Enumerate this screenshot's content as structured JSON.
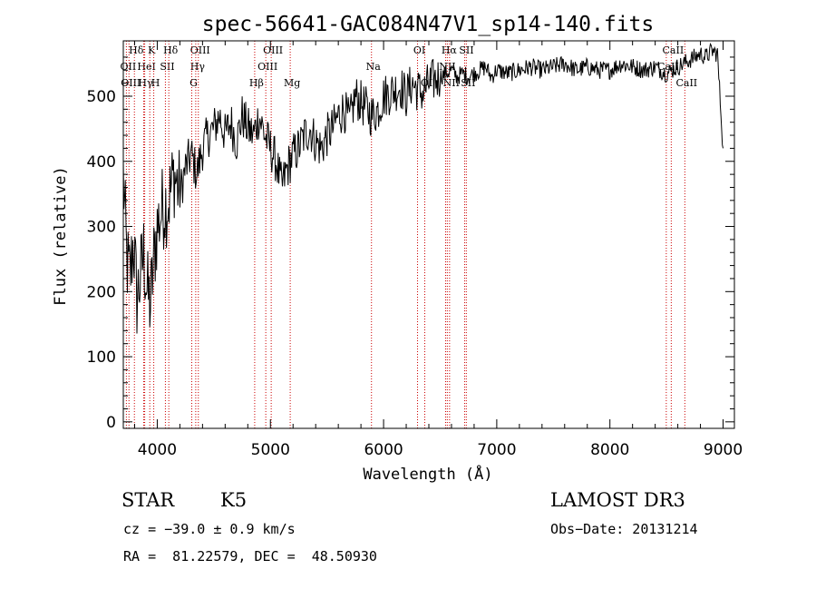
{
  "chart_data": {
    "type": "line",
    "title": "spec-56641-GAC084N47V1_sp14-140.fits",
    "xlabel": "Wavelength (Å)",
    "ylabel": "Flux (relative)",
    "xlim": [
      3700,
      9100
    ],
    "ylim": [
      -10,
      585
    ],
    "x_ticks": [
      4000,
      5000,
      6000,
      7000,
      8000,
      9000
    ],
    "y_ticks": [
      0,
      100,
      200,
      300,
      400,
      500
    ],
    "series": [
      {
        "name": "flux",
        "x": [
          3700,
          3730,
          3760,
          3790,
          3820,
          3850,
          3880,
          3910,
          3940,
          3970,
          4000,
          4050,
          4100,
          4150,
          4200,
          4250,
          4300,
          4350,
          4400,
          4450,
          4500,
          4550,
          4600,
          4650,
          4700,
          4750,
          4800,
          4850,
          4900,
          4950,
          5000,
          5050,
          5100,
          5150,
          5200,
          5250,
          5300,
          5350,
          5400,
          5450,
          5500,
          5550,
          5600,
          5650,
          5700,
          5750,
          5800,
          5850,
          5900,
          5950,
          6000,
          6050,
          6100,
          6150,
          6200,
          6250,
          6300,
          6350,
          6400,
          6450,
          6500,
          6550,
          6600,
          6650,
          6700,
          6750,
          6800,
          6850,
          6900,
          6950,
          7000,
          7100,
          7200,
          7300,
          7400,
          7500,
          7600,
          7700,
          7800,
          7900,
          8000,
          8100,
          8200,
          8300,
          8400,
          8500,
          8550,
          8600,
          8650,
          8700,
          8750,
          8800,
          8850,
          8900,
          8950,
          9000
        ],
        "y": [
          380,
          250,
          220,
          280,
          190,
          220,
          260,
          200,
          180,
          250,
          300,
          330,
          340,
          380,
          350,
          390,
          410,
          380,
          420,
          440,
          450,
          470,
          440,
          460,
          430,
          470,
          450,
          440,
          470,
          440,
          420,
          400,
          360,
          390,
          410,
          420,
          440,
          450,
          430,
          420,
          440,
          450,
          470,
          480,
          460,
          500,
          490,
          480,
          470,
          480,
          500,
          505,
          510,
          515,
          500,
          520,
          510,
          505,
          520,
          525,
          530,
          535,
          540,
          530,
          535,
          530,
          535,
          540,
          545,
          530,
          540,
          535,
          540,
          545,
          540,
          545,
          550,
          540,
          545,
          540,
          540,
          550,
          545,
          540,
          545,
          535,
          540,
          545,
          550,
          555,
          560,
          565,
          560,
          570,
          565,
          420
        ]
      }
    ],
    "spectral_lines": [
      {
        "name": "Hδ",
        "wavelength": 3798,
        "row": 0
      },
      {
        "name": "OII",
        "wavelength": 3727,
        "row": 1
      },
      {
        "name": "OIII",
        "wavelength": 3750,
        "row": 2
      },
      {
        "name": "HeI",
        "wavelength": 3889,
        "row": 1
      },
      {
        "name": "Hγ",
        "wavelength": 3880,
        "row": 2
      },
      {
        "name": "K",
        "wavelength": 3934,
        "row": 0
      },
      {
        "name": "SII",
        "wavelength": 4072,
        "row": 1
      },
      {
        "name": "H",
        "wavelength": 3969,
        "row": 2
      },
      {
        "name": "Hδ",
        "wavelength": 4102,
        "row": 0
      },
      {
        "name": "OIII",
        "wavelength": 4363,
        "row": 0
      },
      {
        "name": "Hγ",
        "wavelength": 4340,
        "row": 1
      },
      {
        "name": "G",
        "wavelength": 4305,
        "row": 2
      },
      {
        "name": "Hβ",
        "wavelength": 4861,
        "row": 2
      },
      {
        "name": "OIII",
        "wavelength": 5007,
        "row": 0
      },
      {
        "name": "OIII",
        "wavelength": 4959,
        "row": 1
      },
      {
        "name": "Mg",
        "wavelength": 5175,
        "row": 2
      },
      {
        "name": "Na",
        "wavelength": 5893,
        "row": 1
      },
      {
        "name": "OI",
        "wavelength": 6300,
        "row": 0
      },
      {
        "name": "OI",
        "wavelength": 6364,
        "row": 2
      },
      {
        "name": "Hα",
        "wavelength": 6563,
        "row": 0
      },
      {
        "name": "NII",
        "wavelength": 6548,
        "row": 1
      },
      {
        "name": "NII",
        "wavelength": 6583,
        "row": 2
      },
      {
        "name": "SII",
        "wavelength": 6716,
        "row": 0
      },
      {
        "name": "SII",
        "wavelength": 6731,
        "row": 2
      },
      {
        "name": "CaII",
        "wavelength": 8542,
        "row": 0
      },
      {
        "name": "CaII",
        "wavelength": 8498,
        "row": 1
      },
      {
        "name": "CaII",
        "wavelength": 8662,
        "row": 2
      }
    ]
  },
  "info": {
    "class": "STAR",
    "subclass": "K5",
    "survey": "LAMOST DR3",
    "redshift": "cz = −39.0 ± 0.9 km/s",
    "obs_date": "Obs−Date: 20131214",
    "coords": "RA =  81.22579, DEC =  48.50930"
  }
}
